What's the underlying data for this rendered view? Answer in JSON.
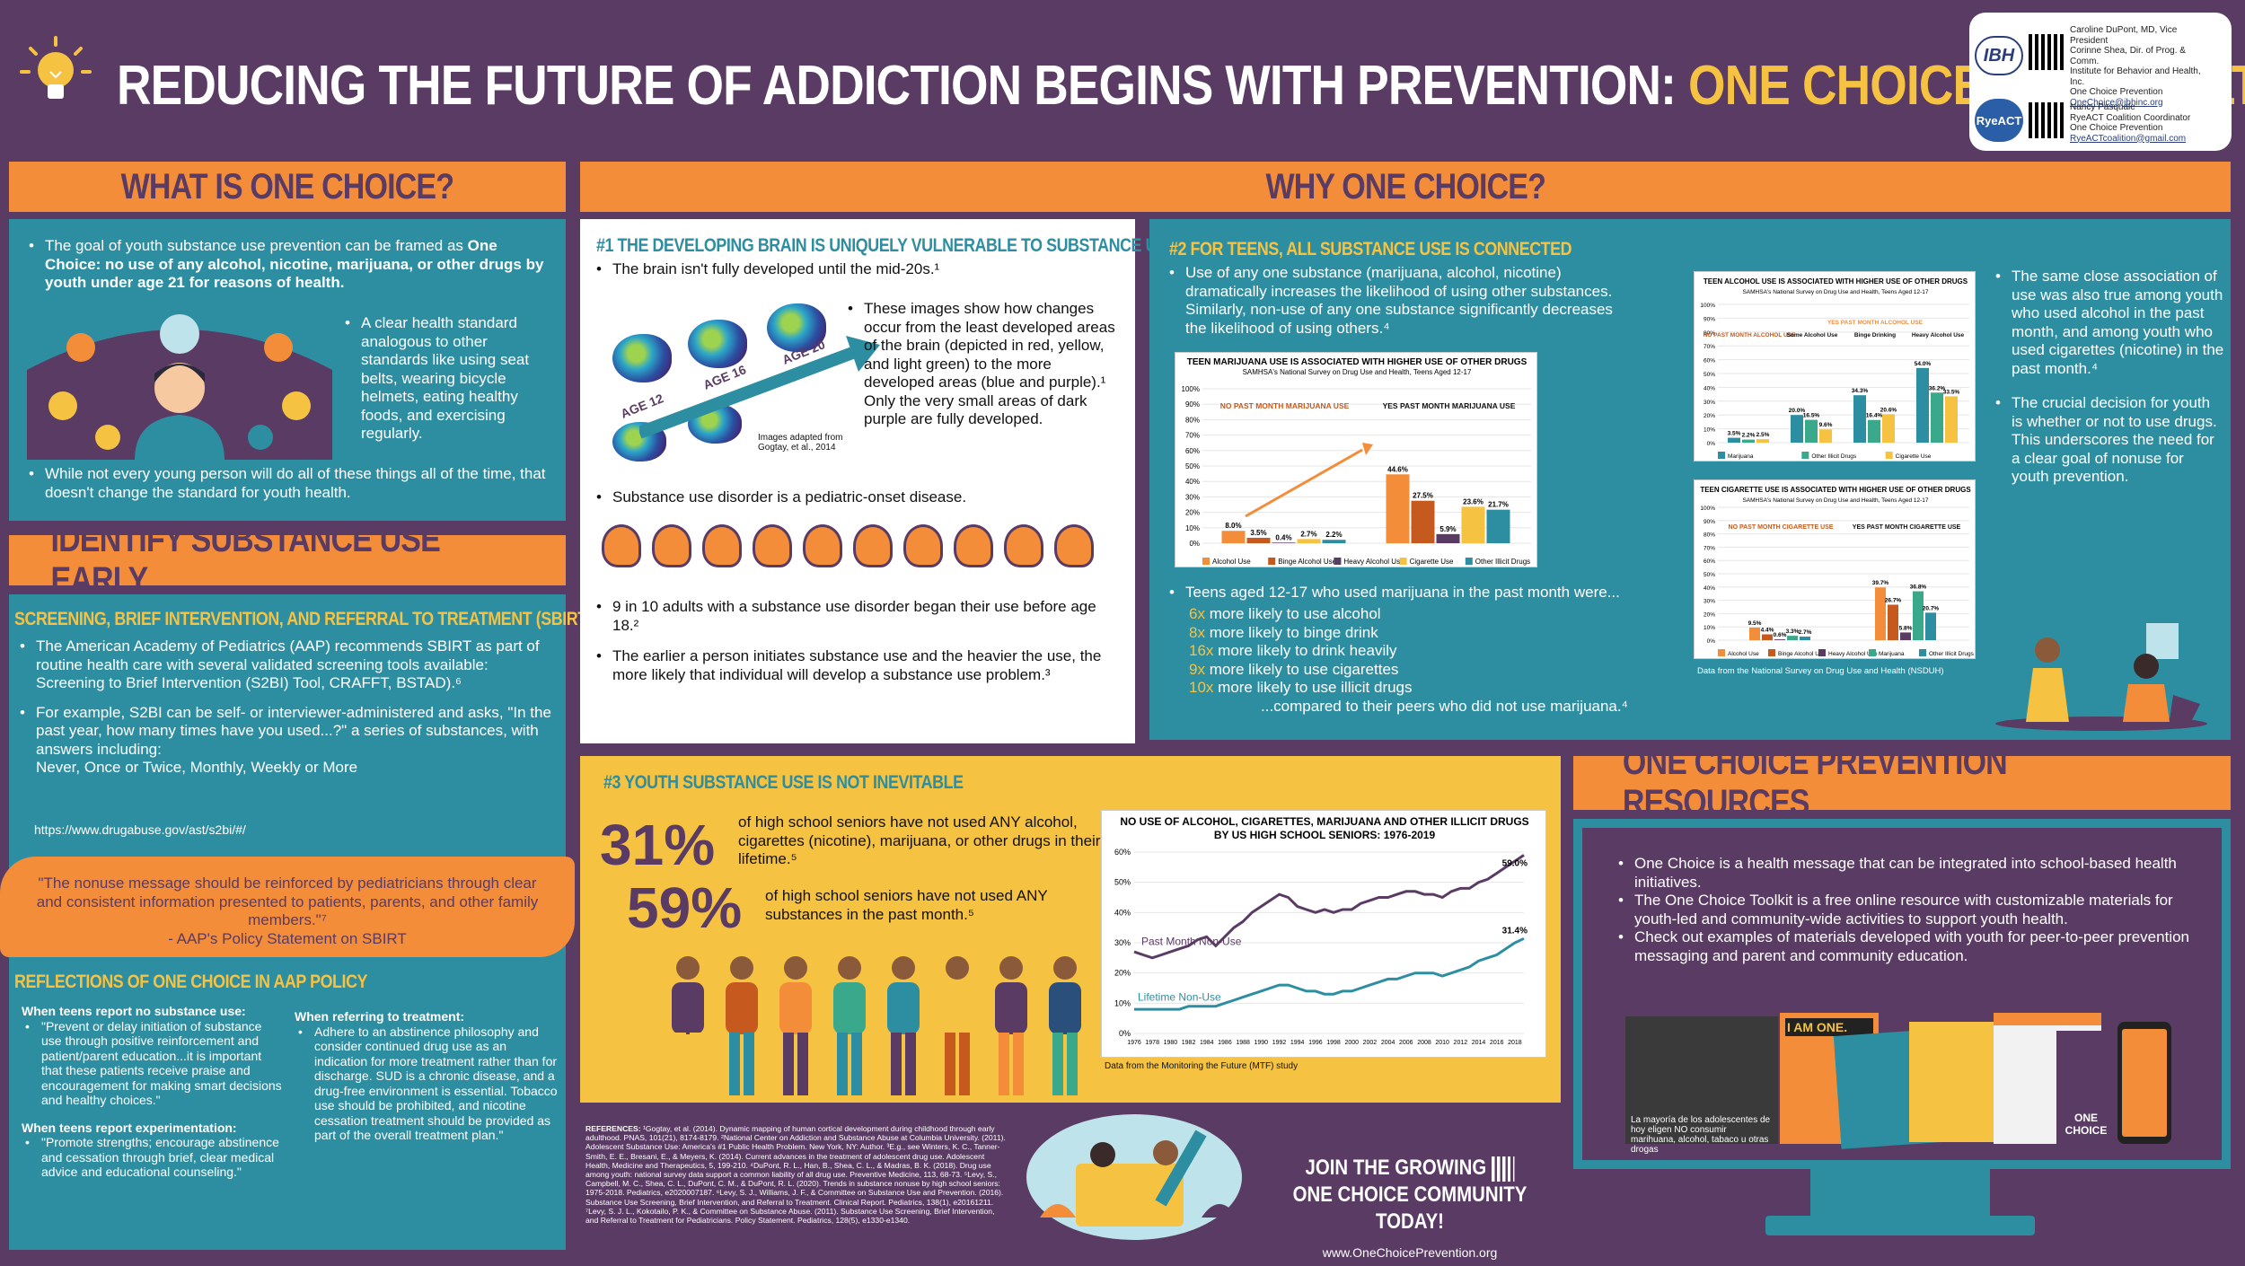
{
  "header": {
    "title_main": "REDUCING THE FUTURE OF ADDICTION BEGINS WITH PREVENTION:",
    "title_highlight": "ONE CHOICE FOR HEALTH",
    "lightbulb_icon": "lightbulb-icon"
  },
  "contact": {
    "ibh_logo": "IBH",
    "ibh_text": [
      "Caroline DuPont, MD, Vice President",
      "Corinne Shea, Dir. of Prog. & Comm.",
      "Institute for Behavior and Health, Inc.",
      "One Choice Prevention",
      "OneChoice@ibhinc.org"
    ],
    "rye_logo": "RyeACT",
    "rye_text": [
      "Nancy Pasquale",
      "RyeACT Coalition Coordinator",
      "One Choice Prevention",
      "RyeACTcoalition@gmail.com"
    ]
  },
  "what": {
    "heading": "WHAT IS ONE CHOICE?",
    "b1_pre": "The goal of youth substance use prevention can be framed as ",
    "b1_bold": "One Choice: no use of any alcohol, nicotine, marijuana, or other drugs by youth under age 21 for reasons of health.",
    "b2": "A clear health standard analogous to other standards like using seat belts, wearing bicycle helmets, eating healthy foods, and exercising regularly.",
    "b3": "While not every young person will do all of these things all of the time, that doesn't change the standard for youth health."
  },
  "identify": {
    "heading": "IDENTIFY SUBSTANCE USE EARLY",
    "sbirt_heading": "SCREENING, BRIEF INTERVENTION, AND REFERRAL TO TREATMENT (SBIRT)",
    "b1": "The American Academy of Pediatrics (AAP) recommends SBIRT as part of routine health care with several validated screening tools available: Screening to Brief Intervention (S2BI) Tool, CRAFFT, BSTAD).⁶",
    "b2": "For example, S2BI can be self- or interviewer-administered and asks, \"In the past year, how many times have you used...?\" a series of substances, with answers including:",
    "b2_answers": "Never, Once or Twice, Monthly, Weekly or More",
    "url": "https://www.drugabuse.gov/ast/s2bi/#/",
    "quote": "\"The nonuse message should be reinforced by pediatricians through clear and consistent information presented to patients, parents, and other family members.\"⁷",
    "quote_src": "- AAP's Policy Statement on SBIRT",
    "reflect_heading": "REFLECTIONS OF ONE CHOICE IN AAP POLICY",
    "no_use_label": "When teens report no substance use:",
    "no_use_text": "\"Prevent or delay initiation of substance use through positive reinforcement and patient/parent education...it is important that these patients receive praise and encouragement for making smart decisions and healthy choices.\"",
    "exp_label": "When teens report experimentation:",
    "exp_text": "\"Promote strengths; encourage abstinence and cessation through brief, clear medical advice and educational counseling.\"",
    "ref_label": "When referring to treatment:",
    "ref_text": "Adhere to an abstinence philosophy and consider continued drug use as an indication for more treatment rather than for discharge. SUD is a chronic disease, and a drug-free environment is essential. Tobacco use should be prohibited, and nicotine cessation treatment should be provided as part of the overall treatment plan.\""
  },
  "why": {
    "heading": "WHY ONE CHOICE?",
    "brain": {
      "heading": "#1 THE DEVELOPING BRAIN IS UNIQUELY VULNERABLE TO SUBSTANCE USE",
      "b1": "The brain isn't fully developed until the mid-20s.¹",
      "age12": "AGE 12",
      "age16": "AGE 16",
      "age20": "AGE 20",
      "credit": "Images adapted from Gogtay, et al., 2014",
      "b2": "These images show how changes occur from the least developed areas of the brain (depicted in red, yellow, and light green) to the more developed areas (blue and purple).¹ Only the very small areas of dark purple are fully developed.",
      "b3": "Substance use disorder is a pediatric-onset disease.",
      "b4": "9 in 10 adults with a substance use disorder began their use before age 18.²",
      "b5": "The earlier a person initiates substance use and the heavier the use, the more likely that individual will develop a substance use problem.³"
    },
    "connected": {
      "heading": "#2 FOR TEENS, ALL SUBSTANCE USE IS CONNECTED",
      "b1": "Use of any one substance (marijuana, alcohol, nicotine) dramatically increases the likelihood of using other substances. Similarly, non-use of any one substance significantly decreases the likelihood of using others.⁴",
      "b2": "Teens aged 12-17 who used marijuana in the past month were...",
      "stats": [
        {
          "n": "6x",
          "t": "more likely to use alcohol"
        },
        {
          "n": "8x",
          "t": "more likely to binge drink"
        },
        {
          "n": "16x",
          "t": "more likely to drink heavily"
        },
        {
          "n": "9x",
          "t": "more likely to use cigarettes"
        },
        {
          "n": "10x",
          "t": "more likely to use illicit drugs"
        }
      ],
      "compared": "...compared to their peers who did not use marijuana.⁴",
      "side1": "The same close association of use was also true among youth who used alcohol in the past month, and among youth who used cigarettes (nicotine) in the past month.⁴",
      "side2": "The crucial decision for youth is whether or not to use drugs. This underscores the need for a clear goal of nonuse for youth prevention.",
      "nsduh": "Data from the National Survey on Drug Use and Health (NSDUH)"
    },
    "inevitable": {
      "heading": "#3 YOUTH SUBSTANCE USE IS NOT INEVITABLE",
      "p1": "31%",
      "t1": "of high school seniors have not used ANY alcohol, cigarettes (nicotine), marijuana, or other drugs in their lifetime.⁵",
      "p2": "59%",
      "t2": "of high school seniors have not used ANY substances in the past month.⁵",
      "mtf": "Data from the Monitoring the Future (MTF) study"
    }
  },
  "resources": {
    "heading": "ONE CHOICE PREVENTION RESOURCES",
    "b1": "One Choice is a health message that can be integrated into school-based health initiatives.",
    "b2": "The One Choice Toolkit is a free online resource with customizable materials for youth-led and community-wide activities to support youth health.",
    "b3": "Check out examples of materials developed with youth for peer-to-peer prevention messaging and parent and community education.",
    "photo_caption": "La mayoría de los adolescentes de hoy eligen NO consumir marihuana, alcohol, tabaco u otras drogas",
    "i_am_one": "I AM ONE.",
    "one_choice": "ONE CHOICE"
  },
  "footer": {
    "refs_label": "REFERENCES:",
    "refs": "¹Gogtay, et al. (2014). Dynamic mapping of human cortical development during childhood through early adulthood. PNAS, 101(21), 8174-8179. ²National Center on Addiction and Substance Abuse at Columbia University. (2011). Adolescent Substance Use: America's #1 Public Health Problem. New York, NY: Author. ³E.g., see Winters, K. C., Tanner-Smith, E. E., Bresani, E., & Meyers, K. (2014). Current advances in the treatment of adolescent drug use. Adolescent Health, Medicine and Therapeutics, 5, 199-210. ⁴DuPont, R. L., Han, B., Shea, C. L., & Madras, B. K. (2018). Drug use among youth: national survey data support a common liability of all drug use. Preventive Medicine, 113, 68-73. ⁵Levy, S., Campbell, M. C., Shea, C. L., DuPont, C. M., & DuPont, R. L. (2020). Trends in substance nonuse by high school seniors: 1975-2018. Pediatrics, e2020007187. ⁶Levy, S. J., Williams, J. F., & Committee on Substance Use and Prevention. (2016). Substance Use Screening, Brief Intervention, and Referral to Treatment. Clinical Report. Pediatrics, 138(1), e20161211. ⁷Levy, S. J. L., Kokotailo, P. K., & Committee on Substance Abuse. (2011). Substance Use Screening, Brief Intervention, and Referral to Treatment for Pediatricians. Policy Statement. Pediatrics, 128(5), e1330-e1340.",
    "join1": "JOIN THE GROWING",
    "join2": "ONE CHOICE COMMUNITY TODAY!",
    "url": "www.OneChoicePrevention.org"
  },
  "chart_data": [
    {
      "type": "bar",
      "title": "TEEN MARIJUANA USE IS ASSOCIATED WITH HIGHER USE OF OTHER DRUGS",
      "subtitle": "SAMHSA's National Survey on Drug Use and Health, Teens Aged 12-17",
      "groups": [
        "NO PAST MONTH MARIJUANA USE",
        "YES PAST MONTH MARIJUANA USE"
      ],
      "series": [
        {
          "name": "Alcohol Use",
          "color": "#f38d3a",
          "values": [
            8.0,
            44.6
          ]
        },
        {
          "name": "Binge Alcohol Use",
          "color": "#c65a1e",
          "values": [
            3.5,
            27.5
          ]
        },
        {
          "name": "Heavy Alcohol Use",
          "color": "#5a3b63",
          "values": [
            0.4,
            5.9
          ]
        },
        {
          "name": "Cigarette Use",
          "color": "#f5c242",
          "values": [
            2.7,
            23.6
          ]
        },
        {
          "name": "Other Illicit Drugs",
          "color": "#2e8ea1",
          "values": [
            2.2,
            21.7
          ]
        }
      ],
      "labels": [
        [
          "8.0%",
          "3.5%",
          "0.4%",
          "2.7%",
          "2.2%"
        ],
        [
          "44.6%",
          "27.5%",
          "5.9%",
          "23.6%",
          "21.7%"
        ]
      ],
      "ylim": [
        0,
        100
      ],
      "yticks": [
        "0%",
        "10%",
        "20%",
        "30%",
        "40%",
        "50%",
        "60%",
        "70%",
        "80%",
        "90%",
        "100%"
      ]
    },
    {
      "type": "bar",
      "title": "TEEN ALCOHOL USE IS ASSOCIATED WITH HIGHER USE OF OTHER DRUGS",
      "subtitle": "SAMHSA's National Survey on Drug Use and Health, Teens Aged 12-17",
      "groups": [
        "NO PAST MONTH ALCOHOL USE",
        "Some Alcohol Use",
        "Binge Drinking",
        "Heavy Alcohol Use"
      ],
      "yes_label": "YES PAST MONTH ALCOHOL USE",
      "series": [
        {
          "name": "Marijuana",
          "color": "#2e8ea1",
          "values": [
            3.5,
            20.0,
            34.3,
            54.0
          ]
        },
        {
          "name": "Other Illicit Drugs",
          "color": "#3aa88a",
          "values": [
            2.2,
            16.5,
            16.4,
            36.2
          ]
        },
        {
          "name": "Cigarette Use",
          "color": "#f5c242",
          "values": [
            2.5,
            9.6,
            20.6,
            33.5
          ]
        }
      ],
      "labels": [
        [
          "3.5%",
          "2.2%",
          "2.5%"
        ],
        [
          "20.0%",
          "16.5%",
          "9.6%"
        ],
        [
          "34.3%",
          "16.4%",
          "20.6%"
        ],
        [
          "54.0%",
          "36.2%",
          "33.5%"
        ]
      ],
      "ylim": [
        0,
        100
      ],
      "yticks": [
        "0%",
        "10%",
        "20%",
        "30%",
        "40%",
        "50%",
        "60%",
        "70%",
        "80%",
        "90%",
        "100%"
      ]
    },
    {
      "type": "bar",
      "title": "TEEN CIGARETTE USE IS ASSOCIATED WITH HIGHER USE OF OTHER DRUGS",
      "subtitle": "SAMHSA's National Survey on Drug Use and Health, Teens Aged 12-17",
      "groups": [
        "NO PAST MONTH CIGARETTE USE",
        "YES PAST MONTH CIGARETTE USE"
      ],
      "series": [
        {
          "name": "Alcohol Use",
          "color": "#f38d3a",
          "values": [
            9.5,
            39.7
          ]
        },
        {
          "name": "Binge Alcohol Use",
          "color": "#c65a1e",
          "values": [
            4.4,
            26.7
          ]
        },
        {
          "name": "Heavy Alcohol Use",
          "color": "#5a3b63",
          "values": [
            0.6,
            5.8
          ]
        },
        {
          "name": "Marijuana",
          "color": "#3aa88a",
          "values": [
            3.3,
            36.8
          ]
        },
        {
          "name": "Other Illicit Drugs",
          "color": "#2e8ea1",
          "values": [
            2.7,
            20.7
          ]
        }
      ],
      "labels": [
        [
          "9.5%",
          "4.4%",
          "0.6%",
          "3.3%",
          "2.7%"
        ],
        [
          "39.7%",
          "26.7%",
          "5.8%",
          "36.8%",
          "20.7%"
        ]
      ],
      "ylim": [
        0,
        100
      ],
      "yticks": [
        "0%",
        "10%",
        "20%",
        "30%",
        "40%",
        "50%",
        "60%",
        "70%",
        "80%",
        "90%",
        "100%"
      ]
    },
    {
      "type": "line",
      "title": "NO USE OF ALCOHOL, CIGARETTES, MARIJUANA AND OTHER ILLICIT DRUGS BY US HIGH SCHOOL SENIORS: 1976-2019",
      "x": [
        1976,
        1977,
        1978,
        1979,
        1980,
        1981,
        1982,
        1983,
        1984,
        1985,
        1986,
        1987,
        1988,
        1989,
        1990,
        1991,
        1992,
        1993,
        1994,
        1995,
        1996,
        1997,
        1998,
        1999,
        2000,
        2001,
        2002,
        2003,
        2004,
        2005,
        2006,
        2007,
        2008,
        2009,
        2010,
        2011,
        2012,
        2013,
        2014,
        2015,
        2016,
        2017,
        2018,
        2019
      ],
      "xticks": [
        "1976",
        "1978",
        "1980",
        "1982",
        "1984",
        "1986",
        "1988",
        "1990",
        "1992",
        "1994",
        "1996",
        "1998",
        "2000",
        "2002",
        "2004",
        "2006",
        "2008",
        "2010",
        "2012",
        "2014",
        "2016",
        "2018"
      ],
      "series": [
        {
          "name": "Past Month Non-Use",
          "color": "#5a3b63",
          "values": [
            27,
            26,
            25,
            26,
            27,
            28,
            29,
            31,
            32,
            29,
            32,
            35,
            37,
            40,
            42,
            44,
            46,
            45,
            42,
            41,
            40,
            41,
            40,
            41,
            41,
            43,
            44,
            45,
            45,
            46,
            47,
            47,
            46,
            46,
            45,
            47,
            48,
            48,
            50,
            51,
            53,
            55,
            57,
            59.0
          ]
        },
        {
          "name": "Lifetime Non-Use",
          "color": "#2e8ea1",
          "values": [
            8,
            8,
            8,
            8,
            8,
            8,
            9,
            9,
            9,
            9,
            10,
            11,
            12,
            13,
            14,
            15,
            16,
            16,
            15,
            14,
            14,
            13,
            13,
            14,
            14,
            15,
            16,
            17,
            18,
            18,
            19,
            20,
            20,
            20,
            19,
            20,
            21,
            22,
            24,
            25,
            26,
            28,
            30,
            31.4
          ]
        }
      ],
      "end_labels": [
        "59.0%",
        "31.4%"
      ],
      "ylim": [
        0,
        60
      ],
      "yticks": [
        "0%",
        "10%",
        "20%",
        "30%",
        "40%",
        "50%",
        "60%"
      ]
    }
  ]
}
